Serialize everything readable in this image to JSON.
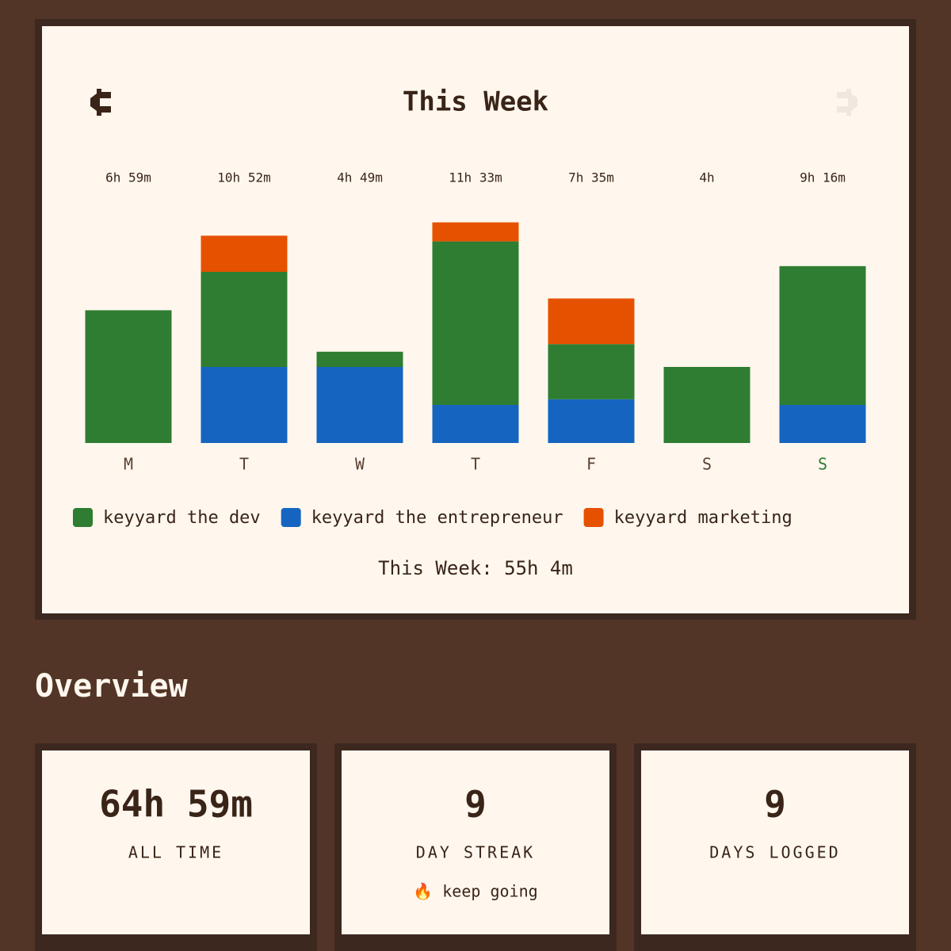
{
  "chart_data": {
    "type": "stacked_bar",
    "title": "This Week",
    "categories": [
      "M",
      "T",
      "W",
      "T",
      "F",
      "S",
      "S"
    ],
    "total_labels": [
      "6h 59m",
      "10h 52m",
      "4h 49m",
      "11h 33m",
      "7h 35m",
      "4h",
      "9h 16m"
    ],
    "series": [
      {
        "name": "keyyard the entrepreneur",
        "color": "#1565c0",
        "values": [
          0,
          4.0,
          4.0,
          2.0,
          2.3,
          0,
          2.0
        ]
      },
      {
        "name": "keyyard the dev",
        "color": "#2e7d32",
        "values": [
          6.98,
          5.0,
          0.8,
          8.6,
          2.9,
          4.0,
          7.3
        ]
      },
      {
        "name": "keyyard marketing",
        "color": "#e65100",
        "values": [
          0,
          1.9,
          0,
          1.0,
          2.4,
          0,
          0
        ]
      }
    ],
    "legend_order": [
      1,
      0,
      2
    ],
    "summary": "This Week: 55h 4m"
  },
  "overview": {
    "title": "Overview",
    "cards": [
      {
        "value": "64h 59m",
        "label": "ALL TIME"
      },
      {
        "value": "9",
        "label": "DAY STREAK",
        "note": "🔥 keep going"
      },
      {
        "value": "9",
        "label": "DAYS LOGGED"
      }
    ]
  }
}
